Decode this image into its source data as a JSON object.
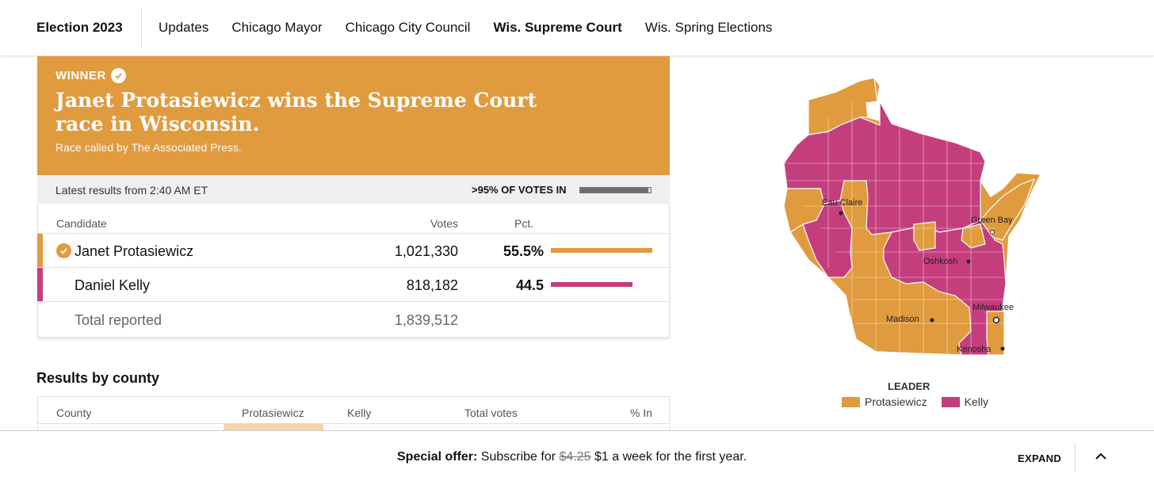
{
  "nav": {
    "brand": "Election 2023",
    "links": [
      {
        "label": "Updates",
        "active": false
      },
      {
        "label": "Chicago Mayor",
        "active": false
      },
      {
        "label": "Chicago City Council",
        "active": false
      },
      {
        "label": "Wis. Supreme Court",
        "active": true
      },
      {
        "label": "Wis. Spring Elections",
        "active": false
      }
    ]
  },
  "banner": {
    "winner_label": "WINNER",
    "headline": "Janet Protasiewicz wins the Supreme Court race in Wisconsin.",
    "subline": "Race called by The Associated Press."
  },
  "status": {
    "latest": "Latest results from 2:40 AM ET",
    "votes_in": ">95% OF VOTES IN",
    "votes_in_fraction": 0.97
  },
  "results": {
    "headers": {
      "candidate": "Candidate",
      "votes": "Votes",
      "pct": "Pct."
    },
    "rows": [
      {
        "name": "Janet Protasiewicz",
        "votes": "1,021,330",
        "pct": "55.5%",
        "pct_value": 55.5,
        "color": "#e09b3e",
        "winner": true
      },
      {
        "name": "Daniel Kelly",
        "votes": "818,182",
        "pct": "44.5",
        "pct_value": 44.5,
        "color": "#c43e7d",
        "winner": false
      }
    ],
    "total": {
      "label": "Total reported",
      "votes": "1,839,512"
    }
  },
  "county": {
    "title": "Results by county",
    "headers": [
      "County",
      "Protasiewicz",
      "Kelly",
      "Total votes",
      "% In"
    ]
  },
  "map": {
    "cities": [
      "Eau Claire",
      "Green Bay",
      "Oshkosh",
      "Milwaukee",
      "Madison",
      "Kenosha"
    ],
    "colors": {
      "protasiewicz": "#e09b3e",
      "kelly": "#c43e7d"
    }
  },
  "legend": {
    "title": "LEADER",
    "items": [
      {
        "label": "Protasiewicz",
        "color": "#e09b3e"
      },
      {
        "label": "Kelly",
        "color": "#c43e7d"
      }
    ]
  },
  "offer": {
    "prefix": "Special offer:",
    "text1": " Subscribe for ",
    "old_price": "$4.25",
    "text2": " $1 a week for the first year.",
    "expand": "EXPAND"
  }
}
